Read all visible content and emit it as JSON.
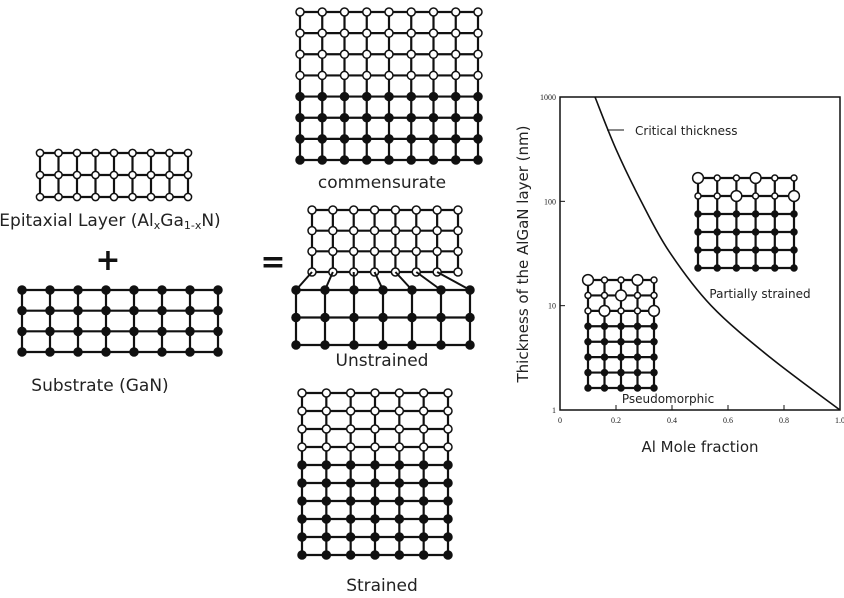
{
  "labels": {
    "epitaxial": [
      "Epitaxial Layer (Al",
      "x",
      "Ga",
      "1-x",
      "N)"
    ],
    "plus": "+",
    "substrate": "Substrate (GaN)",
    "equals": "=",
    "commensurate": "commensurate",
    "unstrained": "Unstrained",
    "strained": "Strained"
  },
  "chart_data": {
    "type": "line",
    "x_label": "Al Mole fraction",
    "y_label": "Thickness of the AlGaN layer (nm)",
    "annotations": [
      "Critical thickness",
      "Partially strained",
      "Pseudomorphic"
    ],
    "x": [
      0.125,
      0.2,
      0.29,
      0.39,
      0.54,
      0.75,
      1
    ],
    "values": [
      1000,
      316,
      100,
      33,
      10,
      3.2,
      1
    ],
    "color": "#111111",
    "xlim": [
      0,
      1
    ],
    "ylim": [
      1,
      1000
    ],
    "log_y": true,
    "xticks": [
      0,
      0.2,
      0.4,
      0.6,
      0.8,
      {
        "value": 1,
        "label": "1.0"
      }
    ],
    "yticks": [
      1,
      10,
      100,
      1000
    ]
  }
}
